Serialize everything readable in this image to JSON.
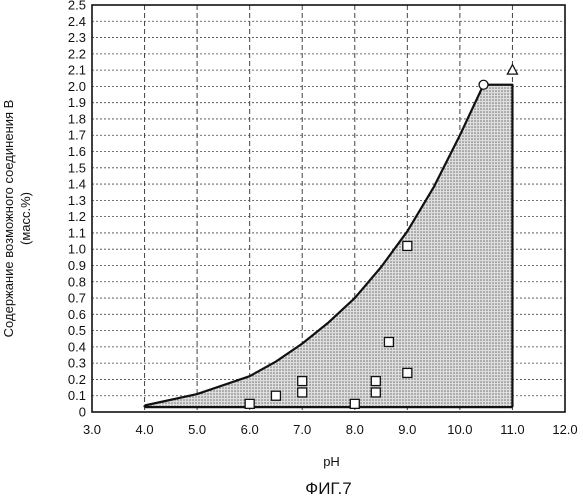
{
  "chart_data": {
    "type": "scatter",
    "title": "",
    "caption": "ФИГ.7",
    "xlabel": "pH",
    "ylabel_line1": "Содержание возможного соединения В",
    "ylabel_line2": "(масс.%)",
    "xlim": [
      3.0,
      12.0
    ],
    "ylim": [
      0.0,
      2.5
    ],
    "x_ticks": [
      3.0,
      4.0,
      5.0,
      6.0,
      7.0,
      8.0,
      9.0,
      10.0,
      11.0,
      12.0
    ],
    "x_tick_labels": [
      "3.0",
      "4.0",
      "5.0",
      "6.0",
      "7.0",
      "8.0",
      "9.0",
      "10.0",
      "11.0",
      "12.0"
    ],
    "y_ticks": [
      0.0,
      0.1,
      0.2,
      0.3,
      0.4,
      0.5,
      0.6,
      0.7,
      0.8,
      0.9,
      1.0,
      1.1,
      1.2,
      1.3,
      1.4,
      1.5,
      1.6,
      1.7,
      1.8,
      1.9,
      2.0,
      2.1,
      2.2,
      2.3,
      2.4,
      2.5
    ],
    "y_tick_labels": [
      "0",
      "0.1",
      "0.2",
      "0.3",
      "0.4",
      "0.5",
      "0.6",
      "0.7",
      "0.8",
      "0.9",
      "1.0",
      "1.1",
      "1.2",
      "1.3",
      "1.4",
      "1.5",
      "1.6",
      "1.7",
      "1.8",
      "1.9",
      "2.0",
      "2.1",
      "2.2",
      "2.3",
      "2.4",
      "2.5"
    ],
    "grid": {
      "vertical": "dashed",
      "horizontal": "dotted"
    },
    "boundary_curve": {
      "x": [
        4.0,
        5.0,
        6.0,
        6.5,
        7.0,
        7.5,
        8.0,
        8.5,
        9.0,
        9.5,
        10.0,
        10.45
      ],
      "y": [
        0.04,
        0.11,
        0.22,
        0.31,
        0.42,
        0.55,
        0.7,
        0.89,
        1.11,
        1.38,
        1.7,
        2.01
      ]
    },
    "boundary_plateau": {
      "x": [
        10.45,
        11.0
      ],
      "y": 2.01
    },
    "boundary_drop": {
      "x": 11.0,
      "y": [
        2.01,
        0.03
      ]
    },
    "shaded_region": "between boundary and baseline",
    "series": [
      {
        "marker": "square",
        "x": [
          6.0,
          6.5,
          7.0,
          7.0,
          8.0,
          8.4,
          8.4,
          8.65,
          9.0,
          9.0
        ],
        "y": [
          0.05,
          0.1,
          0.12,
          0.19,
          0.05,
          0.12,
          0.19,
          0.43,
          0.24,
          1.02
        ]
      },
      {
        "marker": "circle",
        "x": [
          10.45
        ],
        "y": [
          2.01
        ]
      },
      {
        "marker": "triangle",
        "x": [
          11.0
        ],
        "y": [
          2.1
        ]
      }
    ],
    "colors": {
      "line": "#111111",
      "fill": "#d0d0d0",
      "grid": "#444444",
      "marker_face": "#ffffff"
    }
  }
}
